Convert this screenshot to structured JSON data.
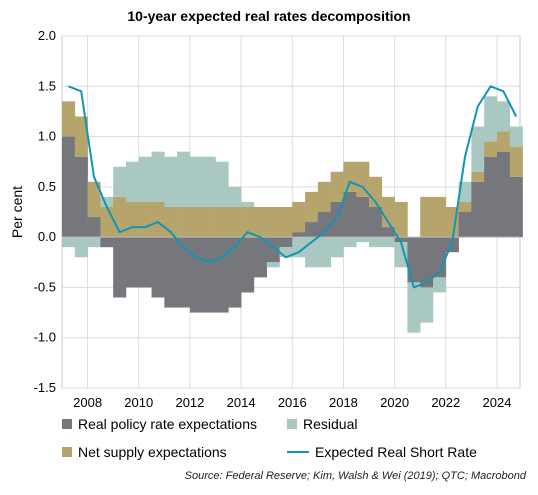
{
  "title": "10-year expected real rates decomposition",
  "source": "Source: Federal Reserve; Kim, Walsh & Wei (2019); QTC; Macrobond",
  "chart_data": {
    "type": "bar",
    "title": "10-year expected real rates decomposition",
    "ylabel": "Per cent",
    "xlabel": "",
    "ylim": [
      -1.5,
      2.0
    ],
    "yticks": [
      "2.0",
      "1.5",
      "1.0",
      "0.5",
      "0.0",
      "-0.5",
      "-1.0",
      "-1.5"
    ],
    "xticks": [
      "2008",
      "2010",
      "2012",
      "2014",
      "2016",
      "2018",
      "2020",
      "2022",
      "2024"
    ],
    "grid": true,
    "legend_position": "bottom",
    "colors": {
      "real_policy": "#76767d",
      "residual": "#a9c8c2",
      "net_supply": "#b5a56d",
      "line": "#1295b3"
    },
    "x": [
      "2007.0",
      "2007.5",
      "2008.0",
      "2008.5",
      "2009.0",
      "2009.5",
      "2010.0",
      "2010.5",
      "2011.0",
      "2011.5",
      "2012.0",
      "2012.5",
      "2013.0",
      "2013.5",
      "2014.0",
      "2014.5",
      "2015.0",
      "2015.5",
      "2016.0",
      "2016.5",
      "2017.0",
      "2017.5",
      "2018.0",
      "2018.5",
      "2019.0",
      "2019.5",
      "2020.0",
      "2020.5",
      "2021.0",
      "2021.5",
      "2022.0",
      "2022.5",
      "2023.0",
      "2023.5",
      "2024.0",
      "2024.5"
    ],
    "series": [
      {
        "name": "Real policy rate expectations",
        "values": [
          1.0,
          0.8,
          0.2,
          -0.1,
          -0.6,
          -0.5,
          -0.5,
          -0.6,
          -0.7,
          -0.7,
          -0.75,
          -0.75,
          -0.75,
          -0.7,
          -0.55,
          -0.4,
          -0.25,
          -0.1,
          0.05,
          0.15,
          0.25,
          0.35,
          0.45,
          0.4,
          0.3,
          0.1,
          -0.05,
          -0.45,
          -0.5,
          -0.4,
          -0.15,
          0.25,
          0.55,
          0.8,
          0.85,
          0.6
        ]
      },
      {
        "name": "Net supply expectations",
        "values": [
          0.35,
          0.4,
          0.35,
          0.3,
          0.4,
          0.35,
          0.35,
          0.35,
          0.3,
          0.3,
          0.3,
          0.3,
          0.3,
          0.3,
          0.3,
          0.3,
          0.3,
          0.3,
          0.3,
          0.3,
          0.3,
          0.3,
          0.3,
          0.35,
          0.3,
          0.3,
          0.35,
          0.0,
          0.4,
          0.4,
          0.3,
          0.1,
          0.1,
          0.15,
          0.2,
          0.3
        ]
      },
      {
        "name": "Residual",
        "values": [
          -0.1,
          -0.2,
          -0.1,
          0.1,
          0.3,
          0.4,
          0.45,
          0.5,
          0.5,
          0.55,
          0.5,
          0.5,
          0.45,
          0.2,
          0.05,
          0.0,
          -0.05,
          -0.1,
          -0.2,
          -0.3,
          -0.3,
          -0.2,
          -0.1,
          -0.05,
          -0.1,
          -0.1,
          -0.25,
          -0.5,
          -0.35,
          -0.15,
          0.0,
          0.2,
          0.45,
          0.45,
          0.3,
          0.2
        ]
      },
      {
        "name": "Expected Real Short Rate",
        "values": [
          1.5,
          1.45,
          0.6,
          0.3,
          0.05,
          0.1,
          0.1,
          0.15,
          0.05,
          -0.1,
          -0.2,
          -0.25,
          -0.2,
          -0.1,
          0.05,
          0.0,
          -0.1,
          -0.2,
          -0.15,
          -0.05,
          0.05,
          0.2,
          0.55,
          0.5,
          0.35,
          0.15,
          -0.05,
          -0.5,
          -0.45,
          -0.35,
          -0.05,
          0.8,
          1.3,
          1.5,
          1.45,
          1.2
        ]
      }
    ]
  }
}
